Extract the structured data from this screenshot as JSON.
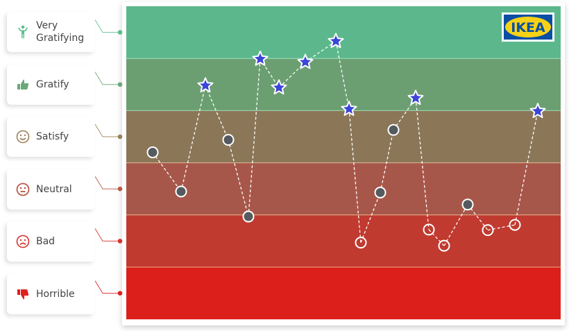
{
  "chart_data": {
    "type": "line",
    "title": "",
    "xlabel": "",
    "ylabel": "",
    "grid": false,
    "legend": "left",
    "levels": [
      {
        "name": "Very Gratifying",
        "value": 6,
        "icon": "person-raised-arms-icon",
        "color": "#5bbf8e",
        "band_color": "#5cb88c"
      },
      {
        "name": "Gratify",
        "value": 5,
        "icon": "thumbs-up-icon",
        "color": "#6aa87a",
        "band_color": "#6b9f72"
      },
      {
        "name": "Satisfy",
        "value": 4,
        "icon": "smile-icon",
        "color": "#9b8159",
        "band_color": "#8b7658"
      },
      {
        "name": "Neutral",
        "value": 3,
        "icon": "neutral-face-icon",
        "color": "#b75a47",
        "band_color": "#a7574a"
      },
      {
        "name": "Bad",
        "value": 2,
        "icon": "sad-face-icon",
        "color": "#d6322c",
        "band_color": "#c03a30"
      },
      {
        "name": "Horrible",
        "value": 1,
        "icon": "thumbs-down-icon",
        "color": "#e01f1f",
        "band_color": "#dc1f1b"
      }
    ],
    "ylim": [
      0.5,
      6.5
    ],
    "points": [
      {
        "y": 3.7,
        "marker": "grey-circle"
      },
      {
        "y": 2.95,
        "marker": "grey-circle"
      },
      {
        "y": 4.98,
        "marker": "star"
      },
      {
        "y": 3.94,
        "marker": "grey-circle"
      },
      {
        "y": 2.47,
        "marker": "grey-circle"
      },
      {
        "y": 5.49,
        "marker": "star"
      },
      {
        "y": 4.94,
        "marker": "star"
      },
      {
        "y": 5.43,
        "marker": "star"
      },
      {
        "y": 5.83,
        "marker": "star"
      },
      {
        "y": 4.53,
        "marker": "star"
      },
      {
        "y": 1.97,
        "marker": "hollow-circle"
      },
      {
        "y": 2.93,
        "marker": "grey-circle"
      },
      {
        "y": 4.13,
        "marker": "grey-circle"
      },
      {
        "y": 4.74,
        "marker": "star"
      },
      {
        "y": 2.22,
        "marker": "hollow-circle"
      },
      {
        "y": 1.91,
        "marker": "hollow-circle"
      },
      {
        "y": 2.7,
        "marker": "grey-circle"
      },
      {
        "y": 2.21,
        "marker": "hollow-circle"
      },
      {
        "y": 2.31,
        "marker": "hollow-circle"
      },
      {
        "y": 4.49,
        "marker": "star"
      }
    ],
    "colors": {
      "star": "#3b45d8",
      "grey": "#555a5e",
      "line": "#ffffff"
    }
  },
  "logo": {
    "text": "IKEA",
    "blue": "#0a4fa3",
    "yellow": "#f7d117"
  }
}
